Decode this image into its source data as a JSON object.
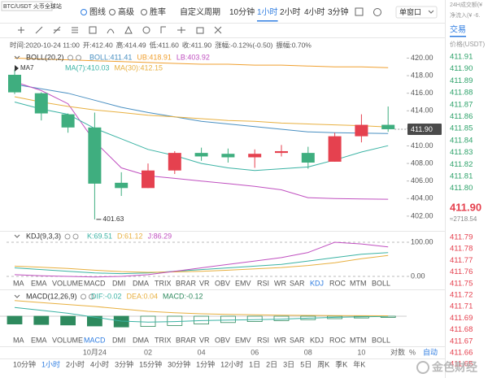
{
  "header": {
    "symbol": "BTC/USDT 火币全球站",
    "tools": [
      "图线",
      "高级",
      "胜率"
    ],
    "periods": [
      "自定义周期",
      "10分钟",
      "1小时",
      "2小时",
      "4小时",
      "3分钟"
    ],
    "active_period": 2,
    "window": "单窗口"
  },
  "info": [
    "时间:2020-10-24 11:00",
    "开:412.40",
    "高:414.49",
    "低:411.60",
    "收:411.90",
    "涨幅:-0.12%(-0.50)",
    "振幅:0.70%"
  ],
  "chart_data": [
    {
      "type": "candlestick",
      "indicator": "BOLL(20,2)",
      "ma_tag": "MA7",
      "categories": [
        null,
        null,
        null,
        "10月24",
        null,
        "02",
        null,
        "04",
        null,
        "06",
        null,
        "08",
        null,
        "10",
        null
      ],
      "open": [
        418.1,
        416.0,
        413.6,
        412.1,
        405.8,
        405.2,
        407.2,
        409.2,
        409.1,
        408.7,
        409.2,
        409.2,
        408.2,
        411.1,
        412.4
      ],
      "high": [
        418.7,
        416.1,
        413.7,
        413.8,
        407.0,
        408.0,
        409.4,
        409.8,
        409.7,
        409.6,
        410.1,
        409.9,
        411.5,
        413.6,
        414.49
      ],
      "low": [
        415.9,
        412.9,
        411.5,
        401.63,
        404.3,
        405.2,
        406.8,
        408.3,
        408.1,
        407.5,
        408.8,
        407.4,
        408.2,
        410.4,
        411.6
      ],
      "close": [
        416.1,
        413.7,
        412.1,
        405.7,
        405.2,
        407.2,
        409.2,
        408.8,
        408.7,
        409.1,
        409.4,
        408.1,
        411.1,
        412.4,
        411.9
      ],
      "up_color": "#e5414f",
      "down_color": "#3fae7f",
      "series": [
        {
          "name": "BOLL:411.41",
          "color": "#4a90c2",
          "values": [
            417.0,
            416.5,
            416.0,
            415.2,
            414.4,
            413.8,
            413.3,
            412.8,
            412.5,
            412.2,
            411.9,
            411.6,
            411.5,
            411.45,
            411.41
          ]
        },
        {
          "name": "UB:418.91",
          "color": "#f0a030",
          "values": [
            420.0,
            419.9,
            419.8,
            419.7,
            419.6,
            419.5,
            419.4,
            419.3,
            419.3,
            419.2,
            419.2,
            419.1,
            419.0,
            419.0,
            418.91
          ]
        },
        {
          "name": "LB:403.92",
          "color": "#c050c0",
          "values": [
            417.3,
            416.3,
            414.8,
            410.5,
            407.5,
            406.6,
            406.3,
            406.0,
            405.7,
            405.4,
            405.0,
            404.1,
            404.0,
            403.95,
            403.92
          ]
        },
        {
          "name": "MA(7):410.03",
          "color": "#3bb3a4",
          "values": [
            415.0,
            414.2,
            413.6,
            412.0,
            410.8,
            409.6,
            408.9,
            408.0,
            407.5,
            407.2,
            407.4,
            407.6,
            408.4,
            409.3,
            410.03
          ]
        },
        {
          "name": "MA(30):412.15",
          "color": "#e8b040",
          "values": [
            415.6,
            415.0,
            414.5,
            414.1,
            413.8,
            413.5,
            413.3,
            413.1,
            412.9,
            412.8,
            412.6,
            412.5,
            412.4,
            412.3,
            412.15
          ]
        }
      ],
      "ylim": [
        400.6,
        420.6
      ],
      "yticks": [
        {
          "value": 420,
          "label": "420.00"
        },
        {
          "value": 418,
          "label": "418.00"
        },
        {
          "value": 416,
          "label": "416.00"
        },
        {
          "value": 414,
          "label": "414.00"
        },
        {
          "value": 412,
          "label": "412.00"
        },
        {
          "value": 410,
          "label": "410.00"
        },
        {
          "value": 408,
          "label": "408.00"
        },
        {
          "value": 406,
          "label": "406.00"
        },
        {
          "value": 404,
          "label": "404.00"
        },
        {
          "value": 402,
          "label": "402.00"
        }
      ],
      "price_tag": "411.90",
      "grid": false
    },
    {
      "type": "line",
      "indicator": "KDJ(9,3,3)",
      "series": [
        {
          "name": "K:69.51",
          "color": "#3bb3a4",
          "values": [
            25,
            20,
            15,
            10,
            8,
            10,
            15,
            20,
            25,
            30,
            35,
            45,
            55,
            65,
            69.51
          ]
        },
        {
          "name": "D:61.12",
          "color": "#e8b040",
          "values": [
            30,
            27,
            23,
            18,
            14,
            12,
            13,
            15,
            18,
            22,
            26,
            32,
            40,
            52,
            61.12
          ]
        },
        {
          "name": "J:86.29",
          "color": "#c050c0",
          "values": [
            5,
            2,
            0,
            -2,
            0,
            5,
            15,
            25,
            35,
            45,
            55,
            70,
            100,
            95,
            86.29
          ]
        }
      ],
      "ylim": [
        -15,
        115
      ],
      "yticks": [
        {
          "value": 100,
          "label": "100.00"
        },
        {
          "value": 0,
          "label": "0.00"
        }
      ],
      "grid": true
    },
    {
      "type": "bar",
      "indicator": "MACD(12,26,9)",
      "series": [
        {
          "name": "DIF:-0.02",
          "color": "#3bb3a4",
          "type": "line",
          "values": [
            0.9,
            0.6,
            0.3,
            -0.1,
            -0.5,
            -0.6,
            -0.55,
            -0.45,
            -0.4,
            -0.35,
            -0.3,
            -0.2,
            -0.12,
            -0.06,
            -0.02
          ]
        },
        {
          "name": "DEA:0.04",
          "color": "#e8b040",
          "type": "line",
          "values": [
            1.6,
            1.4,
            1.2,
            1.0,
            0.75,
            0.5,
            0.35,
            0.25,
            0.18,
            0.14,
            0.1,
            0.08,
            0.06,
            0.05,
            0.04
          ]
        },
        {
          "name": "MACD:-0.12",
          "color": "#2e8a5e",
          "type": "bar",
          "values": [
            -0.8,
            -0.85,
            -0.9,
            -1.0,
            -1.1,
            -1.05,
            -0.95,
            -0.8,
            -0.65,
            -0.55,
            -0.45,
            -0.35,
            -0.25,
            -0.18,
            -0.12
          ]
        }
      ],
      "ylim": [
        -1.75,
        2.25
      ],
      "grid": false
    }
  ],
  "indicator_tabs": [
    {
      "items": [
        "MA",
        "EMA",
        "VOLUME",
        "MACD",
        "DMI",
        "DMA",
        "TRIX",
        "BRAR",
        "VR",
        "OBV",
        "EMV",
        "RSI",
        "WR",
        "SAR",
        "KDJ",
        "ROC",
        "MTM",
        "BOLL"
      ],
      "active": 14
    },
    {
      "items": [
        "MA",
        "EMA",
        "VOLUME",
        "MACD",
        "DMI",
        "DMA",
        "TRIX",
        "BRAR",
        "VR",
        "OBV",
        "EMV",
        "RSI",
        "WR",
        "SAR",
        "KDJ",
        "ROC",
        "MTM",
        "BOLL"
      ],
      "active": 3
    }
  ],
  "axis_controls": [
    "对数",
    "%",
    "自动"
  ],
  "bottom_periods": {
    "items": [
      "10分钟",
      "1小时",
      "2小时",
      "4小时",
      "3分钟",
      "15分钟",
      "30分钟",
      "1分钟",
      "12小时",
      "1日",
      "2日",
      "3日",
      "5日",
      "周K",
      "季K",
      "年K"
    ],
    "active": 1
  },
  "watermark": "金色财经",
  "order_book": {
    "turnover": "24H成交额(¥",
    "inflow": "净流入(¥ -6.",
    "tab": "交易",
    "column": "价格(USDT)",
    "asks": [
      "411.91",
      "411.90",
      "411.89",
      "411.88",
      "411.87",
      "411.86",
      "411.85",
      "411.84",
      "411.83",
      "411.82",
      "411.81",
      "411.80"
    ],
    "last": "411.90",
    "last_cny": "≈2718.54",
    "bids": [
      "411.79",
      "411.78",
      "411.77",
      "411.76",
      "411.75",
      "411.72",
      "411.71",
      "411.69",
      "411.68",
      "411.67",
      "411.66",
      "411.65"
    ]
  }
}
